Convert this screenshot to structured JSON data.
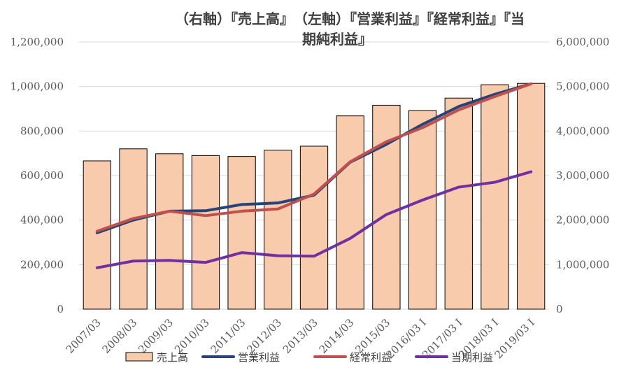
{
  "chart_data": {
    "type": "bar+line",
    "title_line1": "（右軸）『売上高』　（左軸）『営業利益』『経常利益』『当",
    "title_line2": "期純利益』",
    "categories": [
      "2007/03",
      "2008/03",
      "2009/03",
      "2010/03",
      "2011/03",
      "2012/03",
      "2013/03",
      "2014/03",
      "2015/03",
      "2016/03 I",
      "2017/03 I",
      "2018/03 I",
      "2019/03 I"
    ],
    "left_axis": {
      "min": 0,
      "max": 1200000,
      "step": 200000,
      "ticks": [
        "0",
        "200,000",
        "400,000",
        "600,000",
        "800,000",
        "1,000,000",
        "1,200,000"
      ]
    },
    "right_axis": {
      "min": 0,
      "max": 6000000,
      "step": 1000000,
      "ticks": [
        "0",
        "1,000,000",
        "2,000,000",
        "3,000,000",
        "4,000,000",
        "5,000,000",
        "6,000,000"
      ]
    },
    "bar_series": {
      "name": "売上高",
      "axis": "right",
      "color": "#F8CBAD",
      "values": [
        3330000,
        3600000,
        3490000,
        3450000,
        3430000,
        3570000,
        3660000,
        4340000,
        4580000,
        4460000,
        4740000,
        5040000,
        5070000
      ]
    },
    "line_series": [
      {
        "name": "営業利益",
        "axis": "left",
        "color": "#264478",
        "values": [
          343000,
          400000,
          440000,
          442000,
          470000,
          477000,
          512000,
          660000,
          740000,
          830000,
          910000,
          965000,
          1012000
        ]
      },
      {
        "name": "経常利益",
        "axis": "left",
        "color": "#C0504D",
        "values": [
          350000,
          407000,
          440000,
          420000,
          440000,
          450000,
          517000,
          662000,
          752000,
          815000,
          895000,
          955000,
          1012000
        ]
      },
      {
        "name": "当期利益",
        "axis": "left",
        "color": "#7030A0",
        "values": [
          186000,
          216000,
          219000,
          210000,
          254000,
          240000,
          238000,
          318000,
          425000,
          490000,
          548000,
          570000,
          617000
        ]
      }
    ],
    "legend_position": "bottom",
    "grid": "horizontal"
  }
}
